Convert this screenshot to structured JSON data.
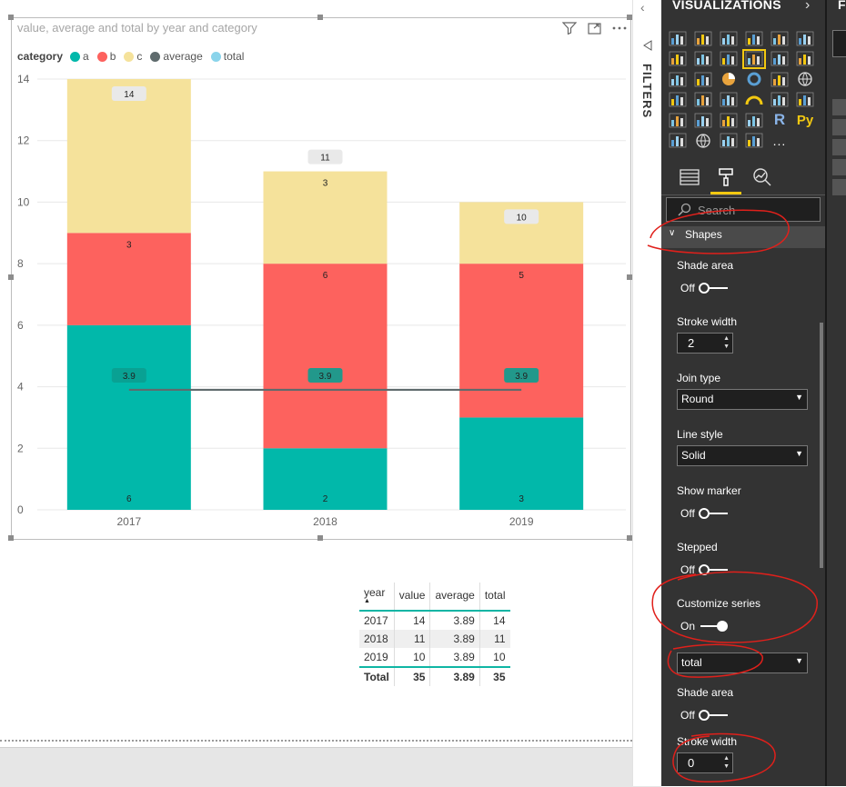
{
  "visual": {
    "title": "value, average and total by year and category",
    "legend_title": "category",
    "legend": [
      {
        "label": "a",
        "color": "#01B8AA"
      },
      {
        "label": "b",
        "color": "#FD625E"
      },
      {
        "label": "c",
        "color": "#F5E29B"
      },
      {
        "label": "average",
        "color": "#5F6B6D"
      },
      {
        "label": "total",
        "color": "#8AD4EB"
      }
    ]
  },
  "chart_data": {
    "type": "bar",
    "stacked": true,
    "categories": [
      "2017",
      "2018",
      "2019"
    ],
    "series": [
      {
        "name": "a",
        "color": "#01B8AA",
        "values": [
          6,
          2,
          3
        ]
      },
      {
        "name": "b",
        "color": "#FD625E",
        "values": [
          3,
          6,
          5
        ]
      },
      {
        "name": "c",
        "color": "#F5E29B",
        "values": [
          5,
          3,
          2
        ]
      }
    ],
    "line_series": [
      {
        "name": "average",
        "color": "#5F6B6D",
        "values": [
          3.9,
          3.9,
          3.9
        ]
      },
      {
        "name": "total",
        "color": "#8AD4EB",
        "values": [
          14,
          11,
          10
        ]
      }
    ],
    "ylim": [
      0,
      14
    ],
    "yticks": [
      "0",
      "2",
      "4",
      "6",
      "8",
      "10",
      "12",
      "14"
    ],
    "grid": true,
    "legend_position": "top-left"
  },
  "table": {
    "headers": [
      "year",
      "value",
      "average",
      "total"
    ],
    "rows": [
      [
        "2017",
        "14",
        "3.89",
        "14"
      ],
      [
        "2018",
        "11",
        "3.89",
        "11"
      ],
      [
        "2019",
        "10",
        "3.89",
        "10"
      ]
    ],
    "total": [
      "Total",
      "35",
      "3.89",
      "35"
    ]
  },
  "filters_label": "FILTERS",
  "viz_pane": {
    "header": "VISUALIZATIONS",
    "search_placeholder": "Search",
    "section": "Shapes",
    "props": {
      "shade_area": "Shade area",
      "shade_off": "Off",
      "stroke_width": "Stroke width",
      "stroke_value": "2",
      "join_type": "Join type",
      "join_value": "Round",
      "line_style": "Line style",
      "line_value": "Solid",
      "show_marker": "Show marker",
      "marker_off": "Off",
      "stepped": "Stepped",
      "stepped_off": "Off",
      "customize_series": "Customize series",
      "customize_on": "On",
      "series_value": "total",
      "shade_area2": "Shade area",
      "shade_off2": "Off",
      "stroke_width2": "Stroke width",
      "stroke_value2": "0"
    },
    "r_label": "R",
    "py_label": "Py",
    "more_label": "..."
  },
  "fields_pane": {
    "header": "F"
  }
}
